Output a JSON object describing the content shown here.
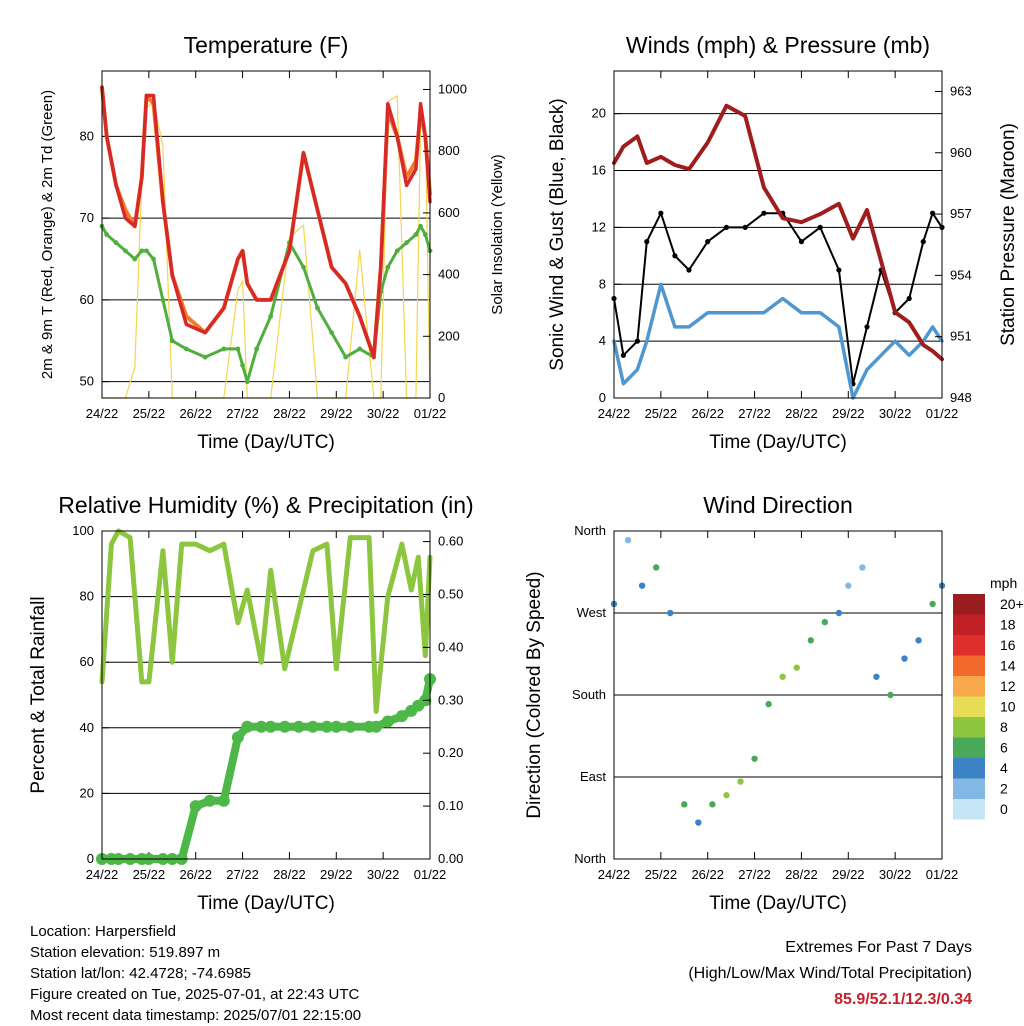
{
  "x_ticks": [
    "24/22",
    "25/22",
    "26/22",
    "27/22",
    "28/22",
    "29/22",
    "30/22",
    "01/22"
  ],
  "chart_data": [
    {
      "type": "line",
      "title": "Temperature (F)",
      "xlabel": "Time (Day/UTC)",
      "ylabel": "2m & 9m T (Red, Orange) & 2m Td (Green)",
      "ylabel_right": "Solar Insolation (Yellow)",
      "ylim": [
        48,
        88
      ],
      "yticks": [
        50,
        60,
        70,
        80
      ],
      "ylim_right": [
        0,
        1060
      ],
      "yticks_right": [
        0,
        200,
        400,
        600,
        800,
        1000
      ],
      "x": [
        0.0,
        0.1,
        0.3,
        0.5,
        0.7,
        0.85,
        0.95,
        1.1,
        1.3,
        1.5,
        1.8,
        2.2,
        2.6,
        2.9,
        3.0,
        3.1,
        3.3,
        3.6,
        4.0,
        4.3,
        4.6,
        4.9,
        5.2,
        5.5,
        5.8,
        5.95,
        6.1,
        6.3,
        6.5,
        6.7,
        6.8,
        6.9,
        7.0
      ],
      "series": [
        {
          "color": "#d62a28",
          "values": [
            86,
            80,
            74,
            70,
            69,
            75,
            85,
            85,
            72,
            63,
            57,
            56,
            59,
            65,
            66,
            62,
            60,
            60,
            66,
            78,
            71,
            64,
            62,
            58,
            53,
            64,
            84,
            80,
            74,
            76,
            84,
            80,
            72
          ]
        },
        {
          "color": "#f47a2a",
          "values": [
            86,
            80,
            74,
            71,
            69,
            75,
            85,
            84,
            72,
            63,
            58,
            56,
            59,
            65,
            66,
            62,
            60,
            60,
            66,
            78,
            71,
            64,
            62,
            58,
            53,
            64,
            83,
            80,
            75,
            77,
            83,
            80,
            73
          ]
        },
        {
          "color": "#4fae3e",
          "values": [
            69,
            68,
            67,
            66,
            65,
            66,
            66,
            65,
            60,
            55,
            54,
            53,
            54,
            54,
            52,
            50,
            54,
            58,
            67,
            64,
            59,
            56,
            53,
            54,
            53,
            61,
            64,
            66,
            67,
            68,
            69,
            68,
            66
          ]
        },
        {
          "color": "#f3d54e",
          "values": [
            0,
            0,
            0,
            0,
            100,
            700,
            940,
            960,
            820,
            0,
            0,
            0,
            0,
            350,
            380,
            0,
            0,
            0,
            520,
            560,
            0,
            0,
            0,
            480,
            0,
            0,
            960,
            980,
            0,
            0,
            900,
            880,
            0
          ]
        }
      ]
    },
    {
      "type": "line",
      "title": "Winds (mph) & Pressure (mb)",
      "xlabel": "Time (Day/UTC)",
      "ylabel": "Sonic Wind & Gust (Blue, Black)",
      "ylabel_right": "Station Pressure (Maroon)",
      "ylim": [
        0,
        23
      ],
      "yticks": [
        0,
        4,
        8,
        12,
        16,
        20
      ],
      "ylim_right": [
        948,
        964
      ],
      "yticks_right": [
        948,
        951,
        954,
        957,
        960,
        963
      ],
      "x": [
        0.0,
        0.2,
        0.5,
        0.7,
        1.0,
        1.3,
        1.6,
        2.0,
        2.4,
        2.8,
        3.2,
        3.6,
        4.0,
        4.4,
        4.8,
        5.1,
        5.4,
        5.7,
        6.0,
        6.3,
        6.6,
        6.8,
        7.0
      ],
      "series": [
        {
          "name": "wind",
          "color": "#4f97d1",
          "values": [
            4,
            1,
            2,
            4,
            8,
            5,
            5,
            6,
            6,
            6,
            6,
            7,
            6,
            6,
            5,
            0,
            2,
            3,
            4,
            3,
            4,
            5,
            4
          ]
        },
        {
          "name": "gust",
          "color": "#000000",
          "values": [
            7,
            3,
            4,
            11,
            13,
            10,
            9,
            11,
            12,
            12,
            13,
            13,
            11,
            12,
            9,
            1,
            5,
            9,
            6,
            7,
            11,
            13,
            12
          ]
        },
        {
          "name": "pressure",
          "color": "#a01d1d",
          "values": [
            959.5,
            960.3,
            960.8,
            959.5,
            959.8,
            959.4,
            959.2,
            960.5,
            962.3,
            961.8,
            958.3,
            956.8,
            956.6,
            957.0,
            957.5,
            955.8,
            957.2,
            954.7,
            952.2,
            951.7,
            950.6,
            950.3,
            949.9
          ]
        }
      ]
    },
    {
      "type": "line",
      "title": "Relative Humidity (%) & Precipitation (in)",
      "xlabel": "Time (Day/UTC)",
      "ylabel": "Percent & Total Rainfall",
      "ylim": [
        0,
        100
      ],
      "yticks": [
        0,
        20,
        40,
        60,
        80,
        100
      ],
      "ylim_right": [
        0,
        0.62
      ],
      "yticks_right": [
        "0.00",
        "0.10",
        "0.20",
        "0.30",
        "0.40",
        "0.50",
        "0.60"
      ],
      "x": [
        0.0,
        0.2,
        0.35,
        0.6,
        0.85,
        1.0,
        1.3,
        1.5,
        1.7,
        2.0,
        2.3,
        2.6,
        2.9,
        3.1,
        3.4,
        3.6,
        3.9,
        4.2,
        4.5,
        4.8,
        5.0,
        5.3,
        5.7,
        5.85,
        6.1,
        6.4,
        6.6,
        6.75,
        6.9,
        7.0
      ],
      "series": [
        {
          "name": "rh",
          "color": "#8cc63f",
          "values": [
            54,
            96,
            100,
            98,
            54,
            54,
            94,
            60,
            96,
            96,
            94,
            96,
            72,
            82,
            60,
            88,
            58,
            76,
            94,
            96,
            58,
            98,
            98,
            45,
            80,
            96,
            82,
            92,
            62,
            92
          ]
        },
        {
          "name": "precip",
          "color": "#4db848",
          "values": [
            0,
            0,
            0,
            0,
            0,
            0,
            0,
            0,
            0,
            0.1,
            0.11,
            0.11,
            0.23,
            0.25,
            0.25,
            0.25,
            0.25,
            0.25,
            0.25,
            0.25,
            0.25,
            0.25,
            0.25,
            0.25,
            0.26,
            0.27,
            0.28,
            0.29,
            0.3,
            0.34
          ]
        }
      ]
    },
    {
      "type": "scatter",
      "title": "Wind Direction",
      "xlabel": "Time (Day/UTC)",
      "ylabel": "Direction (Colored By Speed)",
      "ylim": [
        0,
        360
      ],
      "yticks": [
        "North",
        "East",
        "South",
        "West",
        "North"
      ],
      "legend_title": "mph",
      "legend": [
        "20+",
        "18",
        "16",
        "14",
        "12",
        "10",
        "8",
        "6",
        "4",
        "2",
        "0"
      ],
      "legend_colors": [
        "#9a1d20",
        "#c22027",
        "#df2f2c",
        "#f26a2c",
        "#f9a94b",
        "#e7dc56",
        "#8dc63f",
        "#4aa85a",
        "#3c83c4",
        "#82b8e3",
        "#c6e6f8"
      ],
      "x": [
        0.0,
        0.3,
        0.6,
        0.9,
        1.2,
        1.5,
        1.8,
        2.1,
        2.4,
        2.7,
        3.0,
        3.3,
        3.6,
        3.9,
        4.2,
        4.5,
        4.8,
        5.0,
        5.3,
        5.6,
        5.9,
        6.2,
        6.5,
        6.8,
        7.0
      ],
      "values": [
        280,
        350,
        300,
        320,
        270,
        60,
        40,
        60,
        70,
        85,
        110,
        170,
        200,
        210,
        240,
        260,
        270,
        300,
        320,
        200,
        180,
        220,
        240,
        280,
        300
      ],
      "speeds": [
        3,
        2,
        4,
        6,
        4,
        5,
        4,
        6,
        7,
        8,
        5,
        6,
        7,
        8,
        5,
        6,
        4,
        2,
        1,
        4,
        5,
        3,
        4,
        6,
        4
      ]
    }
  ],
  "info": {
    "location": "Location: Harpersfield",
    "elevation": "Station elevation: 519.897 m",
    "latlon": "Station lat/lon: 42.4728; -74.6985",
    "created": "Figure created on Tue, 2025-07-01, at 22:43 UTC",
    "timestamp": "Most recent data timestamp: 2025/07/01 22:15:00"
  },
  "extremes": {
    "title": "Extremes For Past 7 Days",
    "subtitle": "(High/Low/Max Wind/Total Precipitation)",
    "values": "85.9/52.1/12.3/0.34"
  }
}
